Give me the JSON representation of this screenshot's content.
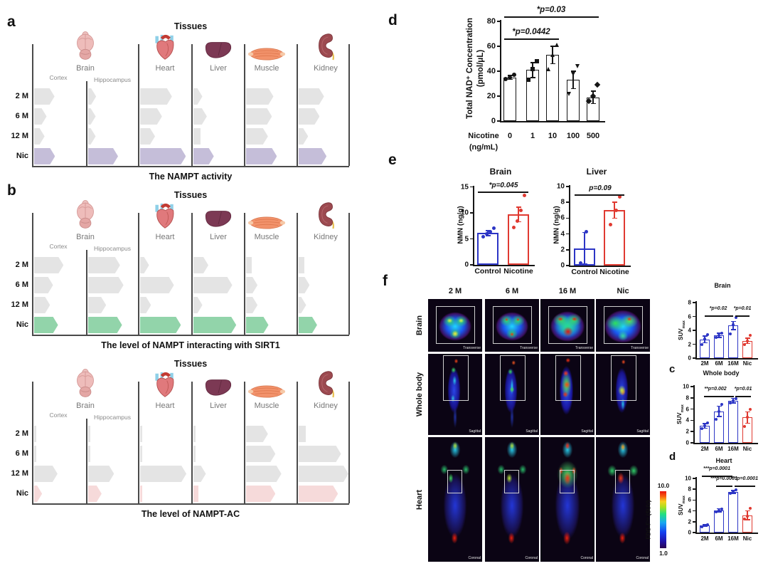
{
  "figure_labels": {
    "d": "d",
    "e": "e",
    "f": "f",
    "c": "c",
    "d2": "d"
  },
  "chart_data": [
    {
      "id": "nampt_activity",
      "type": "bar",
      "orientation": "horizontal",
      "panel_letter": "a",
      "title": "Tissues",
      "caption": "The NAMPT activity",
      "rows": [
        "2 M",
        "6 M",
        "12 M",
        "Nic"
      ],
      "organs": [
        "Brain",
        "Heart",
        "Liver",
        "Muscle",
        "Kidney"
      ],
      "sub_columns": [
        "Cortex",
        "Hippocampus"
      ],
      "groups": [
        {
          "name": "Cortex",
          "values": [
            41,
            25,
            21,
            42
          ]
        },
        {
          "name": "Hippocampus",
          "values": [
            16,
            15,
            15,
            60
          ]
        },
        {
          "name": "Heart",
          "values": [
            64,
            44,
            30,
            92
          ]
        },
        {
          "name": "Liver",
          "values": [
            18,
            27,
            14,
            41
          ]
        },
        {
          "name": "Muscle",
          "values": [
            55,
            52,
            44,
            62
          ]
        },
        {
          "name": "Kidney",
          "values": [
            51,
            42,
            19,
            56
          ]
        }
      ],
      "value_note": "relative bar length, % of tissue column width",
      "colors": {
        "bar": "#e4e4e4",
        "nic": "#c5bed9"
      }
    },
    {
      "id": "nampt_sirt1",
      "type": "bar",
      "orientation": "horizontal",
      "panel_letter": "b",
      "title": "Tissues",
      "caption": "The level of NAMPT interacting with SIRT1",
      "rows": [
        "2 M",
        "6 M",
        "12 M",
        "Nic"
      ],
      "organs": [
        "Brain",
        "Heart",
        "Liver",
        "Muscle",
        "Kidney"
      ],
      "sub_columns": [
        "Cortex",
        "Hippocampus"
      ],
      "groups": [
        {
          "name": "Cortex",
          "values": [
            59,
            38,
            32,
            48
          ]
        },
        {
          "name": "Hippocampus",
          "values": [
            64,
            71,
            36,
            68
          ]
        },
        {
          "name": "Heart",
          "values": [
            18,
            68,
            22,
            82
          ]
        },
        {
          "name": "Liver",
          "values": [
            30,
            78,
            18,
            86
          ]
        },
        {
          "name": "Muscle",
          "values": [
            11,
            23,
            23,
            45
          ]
        },
        {
          "name": "Kidney",
          "values": [
            12,
            22,
            15,
            37
          ]
        }
      ],
      "value_note": "relative bar length, % of tissue column width",
      "colors": {
        "bar": "#e4e4e4",
        "nic": "#92d4aa"
      }
    },
    {
      "id": "nampt_ac",
      "type": "bar",
      "orientation": "horizontal",
      "panel_letter": "",
      "title": "Tissues",
      "caption": "The level of NAMPT-AC",
      "rows": [
        "2 M",
        "6 M",
        "12 M",
        "Nic"
      ],
      "organs": [
        "Brain",
        "Heart",
        "Liver",
        "Muscle",
        "Kidney"
      ],
      "sub_columns": [
        "Cortex",
        "Hippocampus"
      ],
      "groups": [
        {
          "name": "Cortex",
          "values": [
            4,
            4,
            47,
            16
          ]
        },
        {
          "name": "Hippocampus",
          "values": [
            3,
            3,
            52,
            27
          ]
        },
        {
          "name": "Heart",
          "values": [
            3,
            3,
            93,
            3
          ]
        },
        {
          "name": "Liver",
          "values": [
            1,
            1,
            25,
            10
          ]
        },
        {
          "name": "Muscle",
          "values": [
            44,
            59,
            71,
            59
          ]
        },
        {
          "name": "Kidney",
          "values": [
            14,
            85,
            100,
            79
          ]
        }
      ],
      "value_note": "relative bar length, % of tissue column width",
      "colors": {
        "bar": "#e4e4e4",
        "nic": "#f6dada"
      }
    },
    {
      "id": "total_nad",
      "type": "bar",
      "panel_letter": "d",
      "title": "",
      "ylabel_line1": "Total NAD⁺ Concentration",
      "ylabel_line2": "(pmol/μL)",
      "xlabel_line1": "Nicotine",
      "xlabel_line2": "(ng/mL)",
      "categories": [
        "0",
        "1",
        "10",
        "100",
        "500"
      ],
      "values": [
        35,
        41,
        53,
        33,
        19
      ],
      "errors": [
        1.5,
        6,
        7,
        7,
        5
      ],
      "points": [
        [
          34,
          35,
          37
        ],
        [
          33,
          42,
          48
        ],
        [
          42,
          53,
          61
        ],
        [
          22,
          38,
          44
        ],
        [
          16,
          20,
          29
        ]
      ],
      "point_shapes": [
        "circle",
        "square",
        "triangle",
        "tri_down",
        "diamond"
      ],
      "ylim": [
        0,
        80
      ],
      "yticks": [
        0,
        20,
        40,
        60,
        80
      ],
      "bar_border": "#151515",
      "significance": [
        {
          "label": "*p=0.03",
          "from": "0",
          "to": "500"
        },
        {
          "label": "*p=0.0442",
          "from": "0",
          "to": "10"
        }
      ]
    },
    {
      "id": "nmn_brain",
      "type": "bar",
      "panel_letter": "e",
      "title": "Brain",
      "ylabel": "NMN (ng/g)",
      "categories": [
        "Control",
        "Nicotine"
      ],
      "values": [
        6.1,
        9.7
      ],
      "errors": [
        0.5,
        1.4
      ],
      "points": [
        [
          5.4,
          6.0,
          6.4,
          7.0
        ],
        [
          7.2,
          8.4,
          10.5,
          13.4
        ]
      ],
      "ylim": [
        0,
        15
      ],
      "yticks": [
        0,
        5,
        10,
        15
      ],
      "bar_borders": [
        "#2c35c5",
        "#e03a31"
      ],
      "significance": [
        {
          "label": "*p=0.045",
          "from": "Control",
          "to": "Nicotine"
        }
      ]
    },
    {
      "id": "nmn_liver",
      "type": "bar",
      "title": "Liver",
      "ylabel": "NMN (ng/g)",
      "categories": [
        "Control",
        "Nicotine"
      ],
      "values": [
        2.2,
        7.0
      ],
      "errors": [
        2.0,
        1.0
      ],
      "points": [
        [
          0.3,
          4.3
        ],
        [
          5.2,
          7.0,
          8.7
        ]
      ],
      "ylim": [
        0,
        10
      ],
      "yticks": [
        0,
        2,
        4,
        6,
        8,
        10
      ],
      "bar_borders": [
        "#2c35c5",
        "#e03a31"
      ],
      "significance": [
        {
          "label": "p=0.09",
          "from": "Control",
          "to": "Nicotine"
        }
      ]
    },
    {
      "id": "suv_brain",
      "type": "bar",
      "title": "Brain",
      "ylabel": "SUVmax",
      "categories": [
        "2M",
        "6M",
        "16M",
        "Nic"
      ],
      "values": [
        2.7,
        3.3,
        4.7,
        2.5
      ],
      "errors": [
        0.5,
        0.3,
        0.6,
        0.4
      ],
      "points": [
        [
          2.0,
          2.8,
          3.4
        ],
        [
          3.0,
          3.3,
          3.6
        ],
        [
          3.5,
          4.8,
          5.8
        ],
        [
          2.0,
          2.5,
          3.3
        ]
      ],
      "ylim": [
        0,
        8
      ],
      "yticks": [
        0,
        2,
        4,
        6,
        8
      ],
      "bar_borders": [
        "#2c35c5",
        "#2c35c5",
        "#2c35c5",
        "#e03a31"
      ],
      "significance": [
        {
          "label": "*p=0.02",
          "from": "2M",
          "to": "16M"
        },
        {
          "label": "*p=0.01",
          "from": "16M",
          "to": "Nic"
        }
      ]
    },
    {
      "id": "suv_wholebody",
      "type": "bar",
      "panel_letter": "c",
      "title": "Whole body",
      "ylabel": "SUVmax",
      "categories": [
        "2M",
        "6M",
        "16M",
        "Nic"
      ],
      "values": [
        3.0,
        5.6,
        7.5,
        4.5
      ],
      "errors": [
        0.4,
        0.9,
        0.4,
        1.0
      ],
      "points": [
        [
          2.5,
          3.0,
          3.5
        ],
        [
          4.2,
          5.6,
          6.8
        ],
        [
          7.1,
          7.5,
          7.9
        ],
        [
          2.9,
          4.5,
          6.0
        ]
      ],
      "ylim": [
        0,
        10
      ],
      "yticks": [
        0,
        2,
        4,
        6,
        8,
        10
      ],
      "bar_borders": [
        "#2c35c5",
        "#2c35c5",
        "#2c35c5",
        "#e03a31"
      ],
      "significance": [
        {
          "label": "**p=0.002",
          "from": "2M",
          "to": "16M"
        },
        {
          "label": "*p=0.01",
          "from": "16M",
          "to": "Nic"
        }
      ]
    },
    {
      "id": "suv_heart",
      "type": "bar",
      "panel_letter": "d",
      "title": "Heart",
      "ylabel": "SUVmax",
      "categories": [
        "2M",
        "6M",
        "16M",
        "Nic"
      ],
      "values": [
        1.3,
        4.1,
        7.5,
        3.2
      ],
      "errors": [
        0.15,
        0.3,
        0.3,
        0.8
      ],
      "points": [
        [
          1.1,
          1.3,
          1.5
        ],
        [
          3.8,
          4.1,
          4.4
        ],
        [
          7.2,
          7.5,
          7.9
        ],
        [
          2.5,
          3.0,
          4.5
        ]
      ],
      "ylim": [
        0,
        10
      ],
      "yticks": [
        0,
        2,
        4,
        6,
        8,
        10
      ],
      "bar_borders": [
        "#2c35c5",
        "#2c35c5",
        "#2c35c5",
        "#e03a31"
      ],
      "significance": [
        {
          "label": "***p=0.0001",
          "from": "2M",
          "to": "16M"
        },
        {
          "label": "***p=0.0001",
          "from": "6M",
          "to": "16M"
        },
        {
          "label": "***p=0.0001",
          "from": "16M",
          "to": "Nic"
        }
      ]
    }
  ],
  "pet_panel": {
    "panel_letter": "f",
    "columns": [
      "2 M",
      "6 M",
      "16 M",
      "Nic"
    ],
    "rows": [
      {
        "label": "Brain",
        "view": "Transverse"
      },
      {
        "label": "Whole body",
        "view": "Sagittal"
      },
      {
        "label": "Heart",
        "view": "Coronal"
      }
    ],
    "colorbar": {
      "max": "10.0",
      "min": "1.0",
      "label": "FDG-F¹⁸ (SUV)"
    }
  }
}
